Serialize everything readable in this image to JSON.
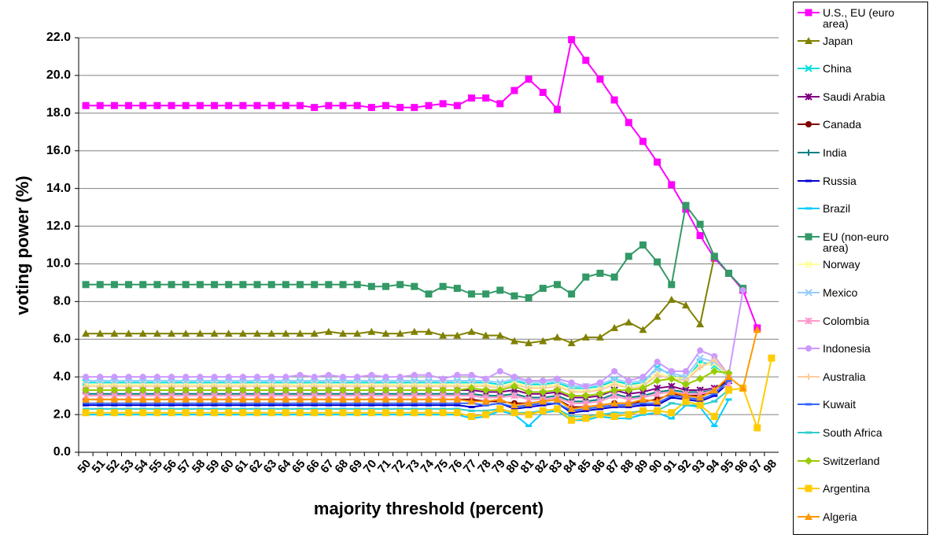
{
  "chart_data": {
    "type": "line",
    "y_label": "voting power (%)",
    "x_label": "majority threshold (percent)",
    "categories": [
      "50",
      "51",
      "52",
      "53",
      "54",
      "55",
      "56",
      "57",
      "58",
      "59",
      "60",
      "61",
      "62",
      "63",
      "64",
      "65",
      "66",
      "67",
      "68",
      "69",
      "70",
      "71",
      "72",
      "73",
      "74",
      "75",
      "76",
      "77",
      "78",
      "79",
      "80",
      "81",
      "82",
      "83",
      "84",
      "85",
      "86",
      "87",
      "88",
      "89",
      "90",
      "91",
      "92",
      "93",
      "94",
      "95",
      "96",
      "97",
      "98"
    ],
    "ylim": [
      0,
      22
    ],
    "yticks": [
      {
        "value": 0,
        "label": "0.0"
      },
      {
        "value": 2,
        "label": "2.0"
      },
      {
        "value": 4,
        "label": "4.0"
      },
      {
        "value": 6,
        "label": "6.0"
      },
      {
        "value": 8,
        "label": "8.0"
      },
      {
        "value": 10,
        "label": "10.0"
      },
      {
        "value": 12,
        "label": "12.0"
      },
      {
        "value": 14,
        "label": "14.0"
      },
      {
        "value": 16,
        "label": "16.0"
      },
      {
        "value": 18,
        "label": "18.0"
      },
      {
        "value": 20,
        "label": "20.0"
      },
      {
        "value": 22,
        "label": "22.0"
      }
    ],
    "grid": true,
    "legend": "right",
    "series": [
      {
        "name": "U.S., EU (euro area)",
        "color": "#ff00ff",
        "marker": "square",
        "values": [
          18.4,
          18.4,
          18.4,
          18.4,
          18.4,
          18.4,
          18.4,
          18.4,
          18.4,
          18.4,
          18.4,
          18.4,
          18.4,
          18.4,
          18.4,
          18.4,
          18.3,
          18.4,
          18.4,
          18.4,
          18.3,
          18.4,
          18.3,
          18.3,
          18.4,
          18.5,
          18.4,
          18.8,
          18.8,
          18.5,
          19.2,
          19.8,
          19.1,
          18.2,
          21.9,
          20.8,
          19.8,
          18.7,
          17.5,
          16.5,
          15.4,
          14.2,
          12.9,
          11.5,
          10.3,
          9.5,
          8.6,
          6.6,
          null
        ]
      },
      {
        "name": "Japan",
        "color": "#808000",
        "marker": "triangle",
        "values": [
          6.3,
          6.3,
          6.3,
          6.3,
          6.3,
          6.3,
          6.3,
          6.3,
          6.3,
          6.3,
          6.3,
          6.3,
          6.3,
          6.3,
          6.3,
          6.3,
          6.3,
          6.4,
          6.3,
          6.3,
          6.4,
          6.3,
          6.3,
          6.4,
          6.4,
          6.2,
          6.2,
          6.4,
          6.2,
          6.2,
          5.9,
          5.8,
          5.9,
          6.1,
          5.8,
          6.1,
          6.1,
          6.6,
          6.9,
          6.5,
          7.2,
          8.1,
          7.8,
          6.8,
          10.4,
          null,
          null,
          null,
          null
        ]
      },
      {
        "name": "China",
        "color": "#00e0e0",
        "marker": "x",
        "values": [
          3.7,
          3.7,
          3.7,
          3.7,
          3.7,
          3.7,
          3.7,
          3.7,
          3.7,
          3.7,
          3.7,
          3.7,
          3.7,
          3.7,
          3.7,
          3.7,
          3.7,
          3.7,
          3.7,
          3.7,
          3.7,
          3.7,
          3.7,
          3.7,
          3.7,
          3.7,
          3.7,
          3.7,
          3.7,
          3.6,
          3.8,
          3.6,
          3.6,
          3.7,
          3.4,
          3.4,
          3.5,
          3.8,
          3.6,
          3.7,
          4.5,
          4.1,
          3.8,
          4.8,
          4.6,
          4.0,
          null,
          null,
          null
        ]
      },
      {
        "name": "Saudi Arabia",
        "color": "#800080",
        "marker": "star",
        "values": [
          3.3,
          3.3,
          3.3,
          3.3,
          3.3,
          3.3,
          3.3,
          3.3,
          3.3,
          3.3,
          3.3,
          3.3,
          3.3,
          3.3,
          3.3,
          3.3,
          3.3,
          3.3,
          3.3,
          3.3,
          3.3,
          3.3,
          3.3,
          3.3,
          3.3,
          3.3,
          3.3,
          3.3,
          3.2,
          3.2,
          3.3,
          3.1,
          3.1,
          3.2,
          2.9,
          2.9,
          3.0,
          3.3,
          3.1,
          3.2,
          3.4,
          3.5,
          3.3,
          3.3,
          3.4,
          3.8,
          null,
          null,
          null
        ]
      },
      {
        "name": "Canada",
        "color": "#800000",
        "marker": "circle",
        "values": [
          2.8,
          2.8,
          2.8,
          2.8,
          2.8,
          2.8,
          2.8,
          2.8,
          2.8,
          2.8,
          2.8,
          2.8,
          2.8,
          2.8,
          2.8,
          2.8,
          2.8,
          2.8,
          2.8,
          2.8,
          2.8,
          2.8,
          2.8,
          2.8,
          2.8,
          2.8,
          2.8,
          2.8,
          2.7,
          2.7,
          2.6,
          2.6,
          2.7,
          2.8,
          2.4,
          2.4,
          2.5,
          2.6,
          2.6,
          2.7,
          2.8,
          3.1,
          3.0,
          3.0,
          3.2,
          3.9,
          null,
          null,
          null
        ]
      },
      {
        "name": "India",
        "color": "#008080",
        "marker": "plus",
        "values": [
          3.1,
          3.1,
          3.1,
          3.1,
          3.1,
          3.1,
          3.1,
          3.1,
          3.1,
          3.1,
          3.1,
          3.1,
          3.1,
          3.1,
          3.1,
          3.1,
          3.1,
          3.1,
          3.1,
          3.1,
          3.1,
          3.1,
          3.1,
          3.1,
          3.1,
          3.1,
          3.1,
          3.1,
          3.0,
          3.0,
          3.1,
          2.9,
          2.9,
          3.0,
          2.7,
          2.7,
          2.8,
          3.1,
          2.9,
          3.0,
          3.2,
          3.3,
          3.2,
          3.2,
          3.3,
          3.7,
          null,
          null,
          null
        ]
      },
      {
        "name": "Russia",
        "color": "#0000cc",
        "marker": "dash",
        "values": [
          2.5,
          2.5,
          2.5,
          2.5,
          2.5,
          2.5,
          2.5,
          2.5,
          2.5,
          2.5,
          2.5,
          2.5,
          2.5,
          2.5,
          2.5,
          2.5,
          2.5,
          2.5,
          2.5,
          2.5,
          2.5,
          2.5,
          2.5,
          2.5,
          2.5,
          2.5,
          2.5,
          2.4,
          2.5,
          2.6,
          2.3,
          2.4,
          2.5,
          2.6,
          2.1,
          2.2,
          2.3,
          2.4,
          2.4,
          2.5,
          2.5,
          2.9,
          2.8,
          2.7,
          3.0,
          3.7,
          null,
          null,
          null
        ]
      },
      {
        "name": "Brazil",
        "color": "#00ccff",
        "marker": "dash",
        "values": [
          2.0,
          2.0,
          2.0,
          2.0,
          2.0,
          2.0,
          2.0,
          2.0,
          2.0,
          2.0,
          2.0,
          2.0,
          2.0,
          2.0,
          2.0,
          2.0,
          2.0,
          2.0,
          2.0,
          2.0,
          2.0,
          2.0,
          2.0,
          2.0,
          2.0,
          2.0,
          2.0,
          1.8,
          1.9,
          2.2,
          2.0,
          1.4,
          2.1,
          2.2,
          1.7,
          1.7,
          1.9,
          1.8,
          1.8,
          2.0,
          2.1,
          1.8,
          2.5,
          2.4,
          1.4,
          2.8,
          null,
          null,
          null
        ]
      },
      {
        "name": "EU (non-euro area)",
        "color": "#339966",
        "marker": "square",
        "values": [
          8.9,
          8.9,
          8.9,
          8.9,
          8.9,
          8.9,
          8.9,
          8.9,
          8.9,
          8.9,
          8.9,
          8.9,
          8.9,
          8.9,
          8.9,
          8.9,
          8.9,
          8.9,
          8.9,
          8.9,
          8.8,
          8.8,
          8.9,
          8.8,
          8.4,
          8.8,
          8.7,
          8.4,
          8.4,
          8.6,
          8.3,
          8.2,
          8.7,
          8.9,
          8.4,
          9.3,
          9.5,
          9.3,
          10.4,
          11.0,
          10.1,
          8.9,
          13.1,
          12.1,
          10.4,
          9.5,
          8.7,
          null,
          null
        ]
      },
      {
        "name": "Norway",
        "color": "#ffff99",
        "marker": "x",
        "values": [
          3.6,
          3.6,
          3.6,
          3.6,
          3.6,
          3.6,
          3.6,
          3.6,
          3.6,
          3.6,
          3.6,
          3.6,
          3.6,
          3.6,
          3.6,
          3.6,
          3.6,
          3.6,
          3.6,
          3.6,
          3.6,
          3.6,
          3.6,
          3.6,
          3.6,
          3.6,
          3.6,
          3.6,
          3.6,
          3.5,
          3.7,
          3.5,
          3.5,
          3.6,
          3.3,
          3.3,
          3.4,
          3.7,
          3.5,
          3.6,
          4.2,
          4.0,
          3.9,
          4.6,
          4.7,
          4.0,
          null,
          null,
          null
        ]
      },
      {
        "name": "Mexico",
        "color": "#99ccff",
        "marker": "x",
        "values": [
          3.8,
          3.8,
          3.8,
          3.8,
          3.8,
          3.8,
          3.8,
          3.8,
          3.8,
          3.8,
          3.8,
          3.8,
          3.8,
          3.8,
          3.8,
          3.8,
          3.8,
          3.8,
          3.8,
          3.8,
          3.8,
          3.8,
          3.8,
          3.8,
          3.8,
          3.8,
          3.8,
          3.8,
          3.8,
          3.7,
          3.9,
          3.7,
          3.7,
          3.8,
          3.5,
          3.5,
          3.6,
          3.9,
          3.7,
          3.8,
          4.4,
          4.2,
          4.0,
          5.0,
          4.8,
          4.1,
          null,
          null,
          null
        ]
      },
      {
        "name": "Colombia",
        "color": "#ff99cc",
        "marker": "star",
        "values": [
          3.0,
          3.0,
          3.0,
          3.0,
          3.0,
          3.0,
          3.0,
          3.0,
          3.0,
          3.0,
          3.0,
          3.0,
          3.0,
          3.0,
          3.0,
          3.0,
          3.0,
          3.0,
          3.0,
          3.0,
          3.0,
          3.0,
          3.0,
          3.0,
          3.0,
          3.0,
          3.0,
          3.0,
          2.9,
          2.9,
          3.0,
          2.8,
          2.8,
          2.9,
          2.6,
          2.6,
          2.7,
          3.0,
          2.8,
          2.9,
          3.1,
          3.2,
          3.1,
          3.1,
          3.3,
          3.6,
          null,
          null,
          null
        ]
      },
      {
        "name": "Indonesia",
        "color": "#cc99ff",
        "marker": "circle",
        "values": [
          4.0,
          4.0,
          4.0,
          4.0,
          4.0,
          4.0,
          4.0,
          4.0,
          4.0,
          4.0,
          4.0,
          4.0,
          4.0,
          4.0,
          4.0,
          4.1,
          4.0,
          4.1,
          4.0,
          4.0,
          4.1,
          4.0,
          4.0,
          4.1,
          4.1,
          3.9,
          4.1,
          4.1,
          3.9,
          4.3,
          4.0,
          3.8,
          3.8,
          3.9,
          3.7,
          3.5,
          3.7,
          4.3,
          3.8,
          4.0,
          4.8,
          4.3,
          4.3,
          5.4,
          5.1,
          4.1,
          8.6,
          null,
          null
        ]
      },
      {
        "name": "Australia",
        "color": "#ffcc99",
        "marker": "plus",
        "values": [
          3.5,
          3.5,
          3.5,
          3.5,
          3.5,
          3.5,
          3.5,
          3.5,
          3.5,
          3.5,
          3.5,
          3.5,
          3.5,
          3.5,
          3.5,
          3.5,
          3.5,
          3.5,
          3.5,
          3.5,
          3.5,
          3.5,
          3.5,
          3.5,
          3.5,
          3.5,
          3.5,
          3.5,
          3.5,
          3.4,
          3.6,
          3.4,
          3.4,
          3.5,
          3.2,
          3.2,
          3.3,
          3.6,
          3.4,
          3.5,
          4.1,
          3.9,
          3.8,
          4.5,
          4.9,
          4.1,
          null,
          null,
          null
        ]
      },
      {
        "name": "Kuwait",
        "color": "#3366ff",
        "marker": "dash",
        "values": [
          2.6,
          2.6,
          2.6,
          2.6,
          2.6,
          2.6,
          2.6,
          2.6,
          2.6,
          2.6,
          2.6,
          2.6,
          2.6,
          2.6,
          2.6,
          2.6,
          2.6,
          2.6,
          2.6,
          2.6,
          2.6,
          2.6,
          2.6,
          2.6,
          2.6,
          2.6,
          2.6,
          2.6,
          2.5,
          2.6,
          2.4,
          2.5,
          2.6,
          2.6,
          2.2,
          2.3,
          2.4,
          2.5,
          2.5,
          2.6,
          2.6,
          3.0,
          2.9,
          2.8,
          3.1,
          3.8,
          null,
          null,
          null
        ]
      },
      {
        "name": "South Africa",
        "color": "#33cccc",
        "marker": "dash",
        "values": [
          2.3,
          2.3,
          2.3,
          2.3,
          2.3,
          2.3,
          2.3,
          2.3,
          2.3,
          2.3,
          2.3,
          2.3,
          2.3,
          2.3,
          2.3,
          2.3,
          2.3,
          2.3,
          2.3,
          2.3,
          2.3,
          2.3,
          2.3,
          2.3,
          2.3,
          2.3,
          2.3,
          2.2,
          2.2,
          2.3,
          2.1,
          2.1,
          2.2,
          2.3,
          1.9,
          1.9,
          2.0,
          2.1,
          2.1,
          2.2,
          2.2,
          2.6,
          2.5,
          2.5,
          2.7,
          3.3,
          null,
          null,
          null
        ]
      },
      {
        "name": "Switzerland",
        "color": "#99cc00",
        "marker": "diamond",
        "values": [
          3.3,
          3.3,
          3.3,
          3.3,
          3.3,
          3.3,
          3.3,
          3.3,
          3.3,
          3.3,
          3.3,
          3.3,
          3.3,
          3.3,
          3.3,
          3.3,
          3.3,
          3.3,
          3.3,
          3.3,
          3.3,
          3.3,
          3.3,
          3.3,
          3.3,
          3.3,
          3.3,
          3.4,
          3.3,
          3.3,
          3.5,
          3.2,
          3.2,
          3.3,
          3.0,
          3.0,
          3.1,
          3.3,
          3.3,
          3.4,
          3.8,
          3.9,
          3.6,
          3.9,
          4.3,
          4.2,
          null,
          null,
          null
        ]
      },
      {
        "name": "Argentina",
        "color": "#ffcc00",
        "marker": "square",
        "values": [
          2.1,
          2.1,
          2.1,
          2.1,
          2.1,
          2.1,
          2.1,
          2.1,
          2.1,
          2.1,
          2.1,
          2.1,
          2.1,
          2.1,
          2.1,
          2.1,
          2.1,
          2.1,
          2.1,
          2.1,
          2.1,
          2.1,
          2.1,
          2.1,
          2.1,
          2.1,
          2.1,
          1.9,
          2.0,
          2.3,
          2.1,
          2.0,
          2.2,
          2.3,
          1.7,
          1.8,
          2.0,
          1.9,
          2.0,
          2.2,
          2.2,
          2.1,
          2.7,
          2.5,
          1.9,
          3.3,
          3.4,
          1.3,
          5.0
        ]
      },
      {
        "name": "Algeria",
        "color": "#ff9900",
        "marker": "triangle",
        "values": [
          2.8,
          2.8,
          2.8,
          2.8,
          2.8,
          2.8,
          2.8,
          2.8,
          2.8,
          2.8,
          2.8,
          2.8,
          2.8,
          2.8,
          2.8,
          2.8,
          2.8,
          2.8,
          2.8,
          2.8,
          2.8,
          2.8,
          2.8,
          2.8,
          2.8,
          2.8,
          2.8,
          2.7,
          2.7,
          2.8,
          2.5,
          2.6,
          2.7,
          2.8,
          2.3,
          2.4,
          2.5,
          2.6,
          2.6,
          2.8,
          2.7,
          3.2,
          3.0,
          2.9,
          3.3,
          4.0,
          3.4,
          6.5,
          null
        ]
      }
    ]
  }
}
